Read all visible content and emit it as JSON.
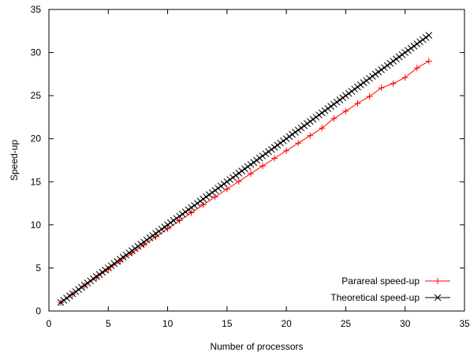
{
  "chart_data": {
    "type": "line",
    "title": "",
    "xlabel": "Number of processors",
    "ylabel": "Speed-up",
    "xlim": [
      0,
      35
    ],
    "ylim": [
      0,
      35
    ],
    "xticks": [
      0,
      5,
      10,
      15,
      20,
      25,
      30,
      35
    ],
    "yticks": [
      0,
      5,
      10,
      15,
      20,
      25,
      30,
      35
    ],
    "grid": false,
    "legend_position": "bottom-right",
    "series": [
      {
        "name": "Parareal speed-up",
        "color": "#ff0000",
        "marker": "plus",
        "x": [
          1,
          2,
          3,
          4,
          5,
          6,
          7,
          8,
          9,
          10,
          11,
          12,
          13,
          14,
          15,
          16,
          17,
          18,
          19,
          20,
          21,
          22,
          23,
          24,
          25,
          26,
          27,
          28,
          29,
          30,
          31,
          32
        ],
        "values": [
          0.97,
          1.95,
          2.91,
          3.88,
          4.84,
          5.79,
          6.74,
          7.68,
          8.62,
          9.56,
          10.49,
          11.41,
          12.33,
          13.24,
          14.15,
          15.05,
          15.95,
          16.84,
          17.73,
          18.61,
          19.49,
          20.36,
          21.23,
          22.34,
          23.2,
          24.1,
          24.9,
          25.9,
          26.4,
          27.1,
          28.2,
          29.0
        ]
      },
      {
        "name": "Theoretical speed-up",
        "color": "#000000",
        "marker": "cross",
        "x": [
          1,
          1.25,
          1.5,
          1.75,
          2,
          2.25,
          2.5,
          2.75,
          3,
          3.25,
          3.5,
          3.75,
          4,
          4.25,
          4.5,
          4.75,
          5,
          5.25,
          5.5,
          5.75,
          6,
          6.25,
          6.5,
          6.75,
          7,
          7.25,
          7.5,
          7.75,
          8,
          8.25,
          8.5,
          8.75,
          9,
          9.25,
          9.5,
          9.75,
          10,
          10.25,
          10.5,
          10.75,
          11,
          11.25,
          11.5,
          11.75,
          12,
          12.25,
          12.5,
          12.75,
          13,
          13.25,
          13.5,
          13.75,
          14,
          14.25,
          14.5,
          14.75,
          15,
          15.25,
          15.5,
          15.75,
          16,
          16.25,
          16.5,
          16.75,
          17,
          17.25,
          17.5,
          17.75,
          18,
          18.25,
          18.5,
          18.75,
          19,
          19.25,
          19.5,
          19.75,
          20,
          20.25,
          20.5,
          20.75,
          21,
          21.25,
          21.5,
          21.75,
          22,
          22.25,
          22.5,
          22.75,
          23,
          23.25,
          23.5,
          23.75,
          24,
          24.25,
          24.5,
          24.75,
          25,
          25.25,
          25.5,
          25.75,
          26,
          26.25,
          26.5,
          26.75,
          27,
          27.25,
          27.5,
          27.75,
          28,
          28.25,
          28.5,
          28.75,
          29,
          29.25,
          29.5,
          29.75,
          30,
          30.25,
          30.5,
          30.75,
          31,
          31.25,
          31.5,
          31.75,
          32
        ],
        "values": [
          1,
          1.25,
          1.5,
          1.75,
          2,
          2.25,
          2.5,
          2.75,
          3,
          3.25,
          3.5,
          3.75,
          4,
          4.25,
          4.5,
          4.75,
          5,
          5.25,
          5.5,
          5.75,
          6,
          6.25,
          6.5,
          6.75,
          7,
          7.25,
          7.5,
          7.75,
          8,
          8.25,
          8.5,
          8.75,
          9,
          9.25,
          9.5,
          9.75,
          10,
          10.25,
          10.5,
          10.75,
          11,
          11.25,
          11.5,
          11.75,
          12,
          12.25,
          12.5,
          12.75,
          13,
          13.25,
          13.5,
          13.75,
          14,
          14.25,
          14.5,
          14.75,
          15,
          15.25,
          15.5,
          15.75,
          16,
          16.25,
          16.5,
          16.75,
          17,
          17.25,
          17.5,
          17.75,
          18,
          18.25,
          18.5,
          18.75,
          19,
          19.25,
          19.5,
          19.75,
          20,
          20.25,
          20.5,
          20.75,
          21,
          21.25,
          21.5,
          21.75,
          22,
          22.25,
          22.5,
          22.75,
          23,
          23.25,
          23.5,
          23.75,
          24,
          24.25,
          24.5,
          24.75,
          25,
          25.25,
          25.5,
          25.75,
          26,
          26.25,
          26.5,
          26.75,
          27,
          27.25,
          27.5,
          27.75,
          28,
          28.25,
          28.5,
          28.75,
          29,
          29.25,
          29.5,
          29.75,
          30,
          30.25,
          30.5,
          30.75,
          31,
          31.25,
          31.5,
          31.75,
          32
        ]
      }
    ]
  }
}
